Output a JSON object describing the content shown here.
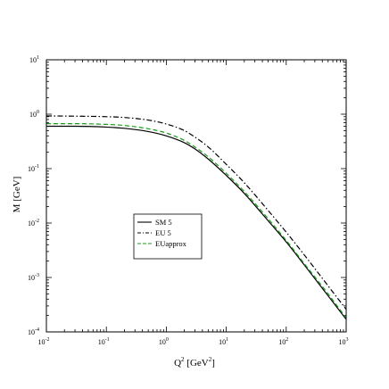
{
  "chart_data": {
    "type": "line",
    "title": "",
    "xlabel": {
      "base": "Q",
      "sup": "2",
      "unit_open": " [GeV",
      "unit_sup": "2",
      "unit_close": "]"
    },
    "ylabel": "M [GeV]",
    "xscale": "log",
    "yscale": "log",
    "xlim": [
      0.01,
      1000
    ],
    "ylim": [
      0.0001,
      10
    ],
    "xticks": [
      {
        "base": "10",
        "exp": "-2",
        "value": 0.01
      },
      {
        "base": "10",
        "exp": "-1",
        "value": 0.1
      },
      {
        "base": "10",
        "exp": "0",
        "value": 1
      },
      {
        "base": "10",
        "exp": "1",
        "value": 10
      },
      {
        "base": "10",
        "exp": "2",
        "value": 100
      },
      {
        "base": "10",
        "exp": "3",
        "value": 1000
      }
    ],
    "yticks": [
      {
        "base": "10",
        "exp": "-4",
        "value": 0.0001
      },
      {
        "base": "10",
        "exp": "-3",
        "value": 0.001
      },
      {
        "base": "10",
        "exp": "-2",
        "value": 0.01
      },
      {
        "base": "10",
        "exp": "-1",
        "value": 0.1
      },
      {
        "base": "10",
        "exp": "0",
        "value": 1
      },
      {
        "base": "10",
        "exp": "1",
        "value": 10
      }
    ],
    "grid": false,
    "legend_position": "center-left",
    "series": [
      {
        "name": "SM 5",
        "color": "#000000",
        "dash": "solid",
        "x": [
          0.01,
          0.03,
          0.1,
          0.2,
          0.5,
          1,
          2,
          3,
          5,
          10,
          20,
          50,
          100,
          200,
          500,
          1000
        ],
        "y": [
          0.6,
          0.6,
          0.58,
          0.55,
          0.48,
          0.4,
          0.3,
          0.23,
          0.15,
          0.075,
          0.035,
          0.011,
          0.0045,
          0.0017,
          0.00046,
          0.00017
        ]
      },
      {
        "name": "EU 5",
        "color": "#000000",
        "dash": "dashdot",
        "x": [
          0.01,
          0.03,
          0.1,
          0.2,
          0.5,
          1,
          2,
          3,
          5,
          10,
          20,
          50,
          100,
          200,
          500,
          1000
        ],
        "y": [
          0.93,
          0.92,
          0.9,
          0.87,
          0.78,
          0.66,
          0.5,
          0.38,
          0.25,
          0.12,
          0.055,
          0.017,
          0.0068,
          0.0026,
          0.0007,
          0.00026
        ]
      },
      {
        "name": "EUapprox",
        "color": "#1a9a1a",
        "dash": "dashed",
        "x": [
          0.01,
          0.03,
          0.1,
          0.2,
          0.5,
          1,
          2,
          3,
          5,
          10,
          20,
          50,
          100,
          200,
          500,
          1000
        ],
        "y": [
          0.67,
          0.67,
          0.65,
          0.62,
          0.54,
          0.45,
          0.33,
          0.25,
          0.165,
          0.082,
          0.038,
          0.012,
          0.0048,
          0.0018,
          0.0005,
          0.00018
        ]
      }
    ]
  }
}
